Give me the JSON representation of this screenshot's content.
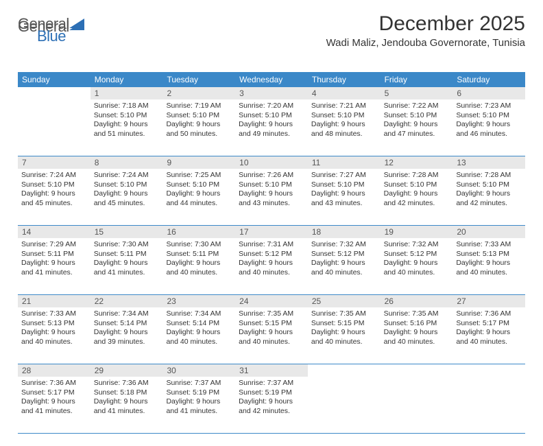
{
  "brand": {
    "part1": "General",
    "part2": "Blue"
  },
  "title": "December 2025",
  "location": "Wadi Maliz, Jendouba Governorate, Tunisia",
  "colors": {
    "header_bg": "#3b88c8",
    "header_text": "#ffffff",
    "daynum_bg": "#e8e8e8",
    "row_border": "#3b88c8",
    "body_text": "#333333",
    "logo_gray": "#555555",
    "logo_blue": "#2c6fb5",
    "page_bg": "#ffffff"
  },
  "weekdays": [
    "Sunday",
    "Monday",
    "Tuesday",
    "Wednesday",
    "Thursday",
    "Friday",
    "Saturday"
  ],
  "weeks": [
    {
      "nums": [
        "",
        "1",
        "2",
        "3",
        "4",
        "5",
        "6"
      ],
      "cells": [
        null,
        {
          "sunrise": "Sunrise: 7:18 AM",
          "sunset": "Sunset: 5:10 PM",
          "daylight": "Daylight: 9 hours and 51 minutes."
        },
        {
          "sunrise": "Sunrise: 7:19 AM",
          "sunset": "Sunset: 5:10 PM",
          "daylight": "Daylight: 9 hours and 50 minutes."
        },
        {
          "sunrise": "Sunrise: 7:20 AM",
          "sunset": "Sunset: 5:10 PM",
          "daylight": "Daylight: 9 hours and 49 minutes."
        },
        {
          "sunrise": "Sunrise: 7:21 AM",
          "sunset": "Sunset: 5:10 PM",
          "daylight": "Daylight: 9 hours and 48 minutes."
        },
        {
          "sunrise": "Sunrise: 7:22 AM",
          "sunset": "Sunset: 5:10 PM",
          "daylight": "Daylight: 9 hours and 47 minutes."
        },
        {
          "sunrise": "Sunrise: 7:23 AM",
          "sunset": "Sunset: 5:10 PM",
          "daylight": "Daylight: 9 hours and 46 minutes."
        }
      ]
    },
    {
      "nums": [
        "7",
        "8",
        "9",
        "10",
        "11",
        "12",
        "13"
      ],
      "cells": [
        {
          "sunrise": "Sunrise: 7:24 AM",
          "sunset": "Sunset: 5:10 PM",
          "daylight": "Daylight: 9 hours and 45 minutes."
        },
        {
          "sunrise": "Sunrise: 7:24 AM",
          "sunset": "Sunset: 5:10 PM",
          "daylight": "Daylight: 9 hours and 45 minutes."
        },
        {
          "sunrise": "Sunrise: 7:25 AM",
          "sunset": "Sunset: 5:10 PM",
          "daylight": "Daylight: 9 hours and 44 minutes."
        },
        {
          "sunrise": "Sunrise: 7:26 AM",
          "sunset": "Sunset: 5:10 PM",
          "daylight": "Daylight: 9 hours and 43 minutes."
        },
        {
          "sunrise": "Sunrise: 7:27 AM",
          "sunset": "Sunset: 5:10 PM",
          "daylight": "Daylight: 9 hours and 43 minutes."
        },
        {
          "sunrise": "Sunrise: 7:28 AM",
          "sunset": "Sunset: 5:10 PM",
          "daylight": "Daylight: 9 hours and 42 minutes."
        },
        {
          "sunrise": "Sunrise: 7:28 AM",
          "sunset": "Sunset: 5:10 PM",
          "daylight": "Daylight: 9 hours and 42 minutes."
        }
      ]
    },
    {
      "nums": [
        "14",
        "15",
        "16",
        "17",
        "18",
        "19",
        "20"
      ],
      "cells": [
        {
          "sunrise": "Sunrise: 7:29 AM",
          "sunset": "Sunset: 5:11 PM",
          "daylight": "Daylight: 9 hours and 41 minutes."
        },
        {
          "sunrise": "Sunrise: 7:30 AM",
          "sunset": "Sunset: 5:11 PM",
          "daylight": "Daylight: 9 hours and 41 minutes."
        },
        {
          "sunrise": "Sunrise: 7:30 AM",
          "sunset": "Sunset: 5:11 PM",
          "daylight": "Daylight: 9 hours and 40 minutes."
        },
        {
          "sunrise": "Sunrise: 7:31 AM",
          "sunset": "Sunset: 5:12 PM",
          "daylight": "Daylight: 9 hours and 40 minutes."
        },
        {
          "sunrise": "Sunrise: 7:32 AM",
          "sunset": "Sunset: 5:12 PM",
          "daylight": "Daylight: 9 hours and 40 minutes."
        },
        {
          "sunrise": "Sunrise: 7:32 AM",
          "sunset": "Sunset: 5:12 PM",
          "daylight": "Daylight: 9 hours and 40 minutes."
        },
        {
          "sunrise": "Sunrise: 7:33 AM",
          "sunset": "Sunset: 5:13 PM",
          "daylight": "Daylight: 9 hours and 40 minutes."
        }
      ]
    },
    {
      "nums": [
        "21",
        "22",
        "23",
        "24",
        "25",
        "26",
        "27"
      ],
      "cells": [
        {
          "sunrise": "Sunrise: 7:33 AM",
          "sunset": "Sunset: 5:13 PM",
          "daylight": "Daylight: 9 hours and 40 minutes."
        },
        {
          "sunrise": "Sunrise: 7:34 AM",
          "sunset": "Sunset: 5:14 PM",
          "daylight": "Daylight: 9 hours and 39 minutes."
        },
        {
          "sunrise": "Sunrise: 7:34 AM",
          "sunset": "Sunset: 5:14 PM",
          "daylight": "Daylight: 9 hours and 40 minutes."
        },
        {
          "sunrise": "Sunrise: 7:35 AM",
          "sunset": "Sunset: 5:15 PM",
          "daylight": "Daylight: 9 hours and 40 minutes."
        },
        {
          "sunrise": "Sunrise: 7:35 AM",
          "sunset": "Sunset: 5:15 PM",
          "daylight": "Daylight: 9 hours and 40 minutes."
        },
        {
          "sunrise": "Sunrise: 7:35 AM",
          "sunset": "Sunset: 5:16 PM",
          "daylight": "Daylight: 9 hours and 40 minutes."
        },
        {
          "sunrise": "Sunrise: 7:36 AM",
          "sunset": "Sunset: 5:17 PM",
          "daylight": "Daylight: 9 hours and 40 minutes."
        }
      ]
    },
    {
      "nums": [
        "28",
        "29",
        "30",
        "31",
        "",
        "",
        ""
      ],
      "cells": [
        {
          "sunrise": "Sunrise: 7:36 AM",
          "sunset": "Sunset: 5:17 PM",
          "daylight": "Daylight: 9 hours and 41 minutes."
        },
        {
          "sunrise": "Sunrise: 7:36 AM",
          "sunset": "Sunset: 5:18 PM",
          "daylight": "Daylight: 9 hours and 41 minutes."
        },
        {
          "sunrise": "Sunrise: 7:37 AM",
          "sunset": "Sunset: 5:19 PM",
          "daylight": "Daylight: 9 hours and 41 minutes."
        },
        {
          "sunrise": "Sunrise: 7:37 AM",
          "sunset": "Sunset: 5:19 PM",
          "daylight": "Daylight: 9 hours and 42 minutes."
        },
        null,
        null,
        null
      ]
    }
  ]
}
